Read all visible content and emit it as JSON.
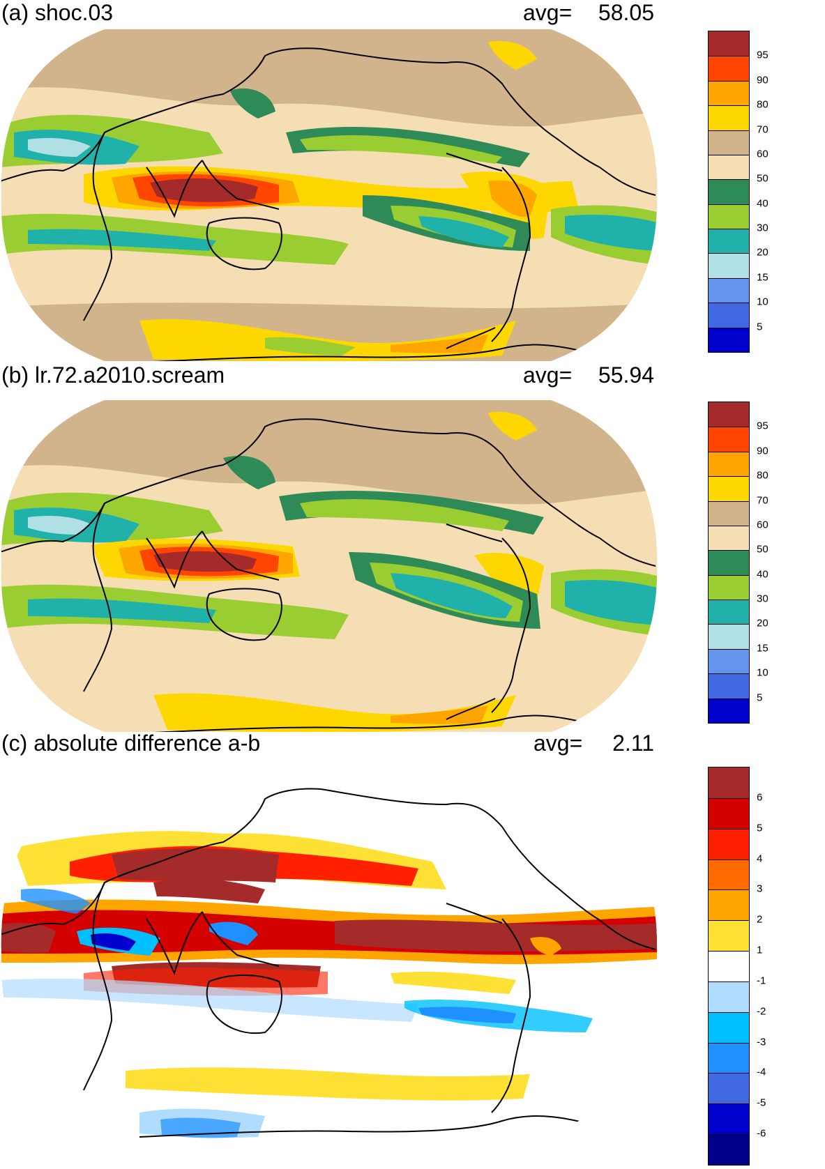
{
  "panels": [
    {
      "id": "a",
      "title": "(a) shoc.03",
      "avg_label": "avg=",
      "avg_value": "58.05",
      "colorbar": {
        "labels": [
          "95",
          "90",
          "80",
          "70",
          "60",
          "50",
          "40",
          "30",
          "20",
          "15",
          "10",
          "5"
        ],
        "colors": [
          "#a52a2a",
          "#ff4500",
          "#ffa500",
          "#ffd700",
          "#d2b48c",
          "#f5deb3",
          "#2e8b57",
          "#9acd32",
          "#20b2aa",
          "#b0e0e6",
          "#6495ed",
          "#4169e1",
          "#0000cd"
        ]
      }
    },
    {
      "id": "b",
      "title": "(b) lr.72.a2010.scream",
      "avg_label": "avg=",
      "avg_value": "55.94",
      "colorbar": {
        "labels": [
          "95",
          "90",
          "80",
          "70",
          "60",
          "50",
          "40",
          "30",
          "20",
          "15",
          "10",
          "5"
        ],
        "colors": [
          "#a52a2a",
          "#ff4500",
          "#ffa500",
          "#ffd700",
          "#d2b48c",
          "#f5deb3",
          "#2e8b57",
          "#9acd32",
          "#20b2aa",
          "#b0e0e6",
          "#6495ed",
          "#4169e1",
          "#0000cd"
        ]
      }
    },
    {
      "id": "c",
      "title": "(c) absolute difference a-b",
      "avg_label": "avg=",
      "avg_value": "2.11",
      "colorbar": {
        "labels": [
          "6",
          "5",
          "4",
          "3",
          "2",
          "1",
          "-1",
          "-2",
          "-3",
          "-4",
          "-5",
          "-6"
        ],
        "colors": [
          "#a52a2a",
          "#d40000",
          "#ff2000",
          "#ff6a00",
          "#ffa500",
          "#ffe135",
          "#ffffff",
          "#b0dcff",
          "#00bfff",
          "#1e90ff",
          "#4169e1",
          "#0000cd",
          "#00008b"
        ]
      }
    }
  ],
  "map_colors": {
    "land_outline": "#000000"
  }
}
